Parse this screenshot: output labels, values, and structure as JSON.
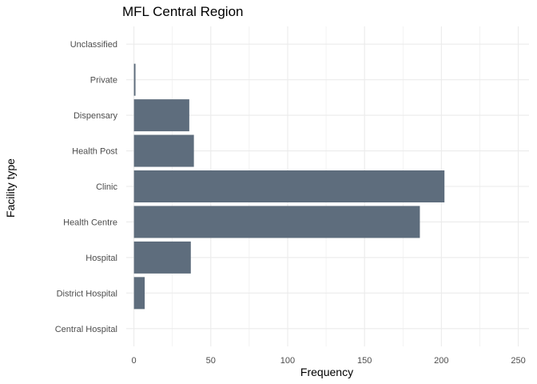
{
  "chart_data": {
    "type": "bar",
    "orientation": "horizontal",
    "title": "MFL Central Region",
    "xlabel": "Frequency",
    "ylabel": "Facility type",
    "categories": [
      "Central Hospital",
      "District Hospital",
      "Hospital",
      "Health Centre",
      "Clinic",
      "Health Post",
      "Dispensary",
      "Private",
      "Unclassified"
    ],
    "values": [
      0,
      7,
      37,
      186,
      202,
      39,
      36,
      1,
      0
    ],
    "xlim": [
      -5,
      257
    ],
    "xticks": [
      0,
      50,
      100,
      150,
      200,
      250
    ],
    "xtick_labels": [
      "0",
      "50",
      "100",
      "150",
      "200",
      "250"
    ],
    "grid": true,
    "bar_color": "#5e6d7d"
  }
}
